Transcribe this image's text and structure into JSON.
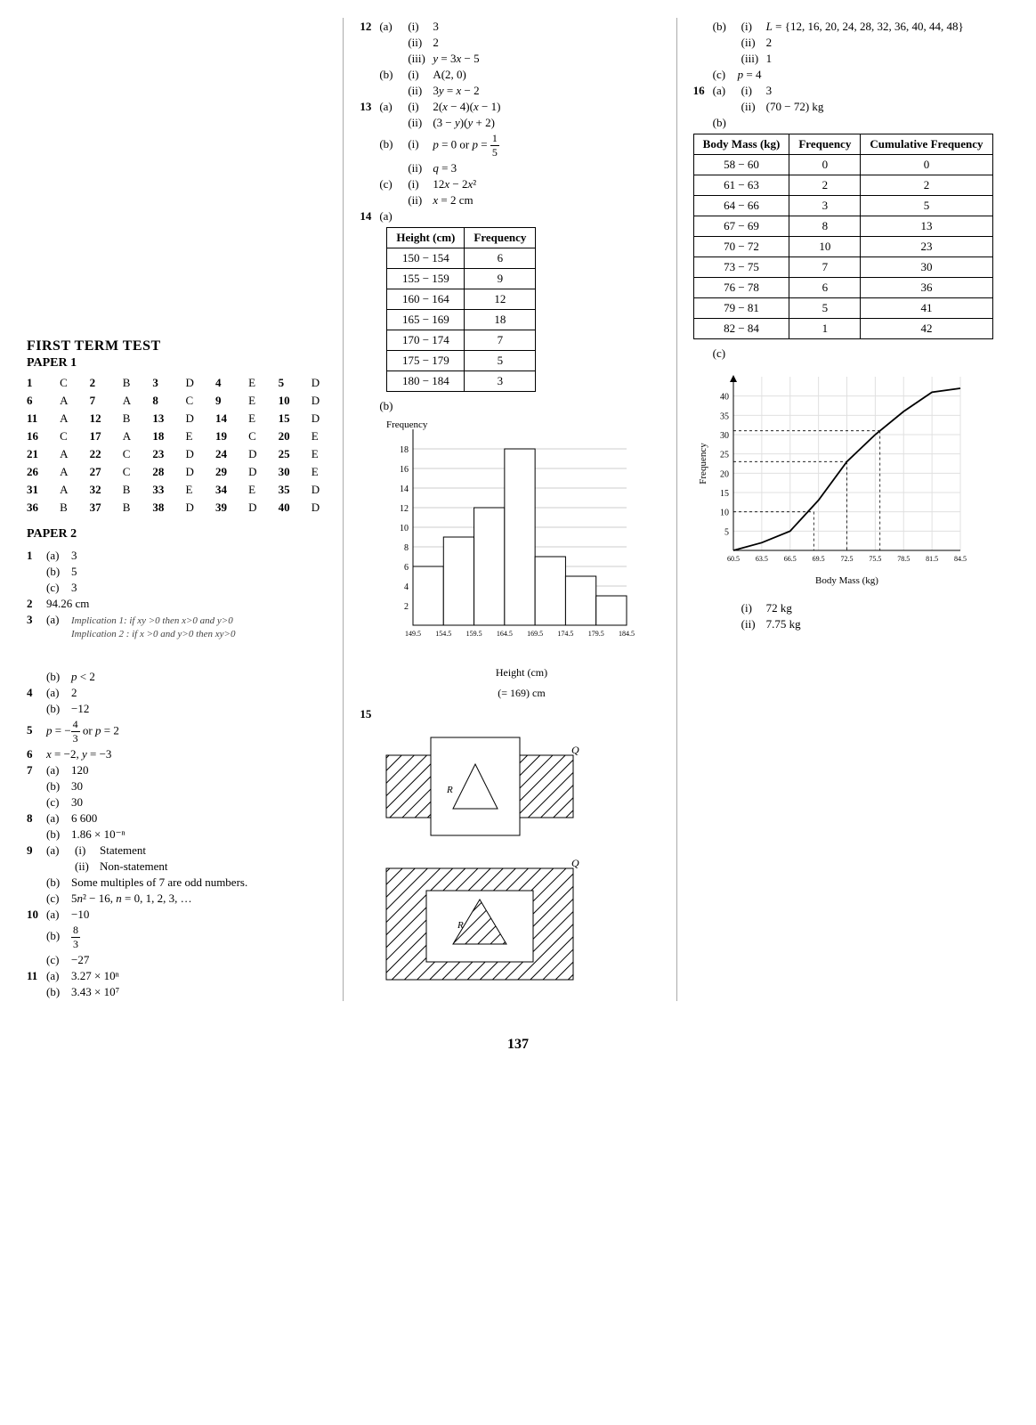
{
  "page_number": "137",
  "col1": {
    "heading": "FIRST TERM TEST",
    "paper1_label": "PAPER 1",
    "paper1_answers": [
      [
        "1",
        "C",
        "2",
        "B",
        "3",
        "D",
        "4",
        "E",
        "5",
        "D"
      ],
      [
        "6",
        "A",
        "7",
        "A",
        "8",
        "C",
        "9",
        "E",
        "10",
        "D"
      ],
      [
        "11",
        "A",
        "12",
        "B",
        "13",
        "D",
        "14",
        "E",
        "15",
        "D"
      ],
      [
        "16",
        "C",
        "17",
        "A",
        "18",
        "E",
        "19",
        "C",
        "20",
        "E"
      ],
      [
        "21",
        "A",
        "22",
        "C",
        "23",
        "D",
        "24",
        "D",
        "25",
        "E"
      ],
      [
        "26",
        "A",
        "27",
        "C",
        "28",
        "D",
        "29",
        "D",
        "30",
        "E"
      ],
      [
        "31",
        "A",
        "32",
        "B",
        "33",
        "E",
        "34",
        "E",
        "35",
        "D"
      ],
      [
        "36",
        "B",
        "37",
        "B",
        "38",
        "D",
        "39",
        "D",
        "40",
        "D"
      ]
    ],
    "paper2_label": "PAPER 2",
    "q1a": "3",
    "q1b": "5",
    "q1c": "3",
    "q2": "94.26 cm",
    "q3a_imp1": "Implication 1: if xy >0 then x>0 and y>0",
    "q3a_imp2": "Implication 2 : if x >0 and y>0 then xy>0",
    "q3b": "p < 2",
    "q4a": "2",
    "q4b": "−12",
    "q5": "p = −4/3 or p = 2",
    "q6": "x = −2, y = −3",
    "q7a": "120",
    "q7b": "30",
    "q7c": "30",
    "q8a": "6 600",
    "q8b": "1.86 × 10⁻ⁿ",
    "q9ai": "Statement",
    "q9aii": "Non-statement",
    "q9b": "Some multiples of 7 are odd numbers.",
    "q9c": "5n² − 16, n = 0, 1, 2, 3, …",
    "q10a": "−10",
    "q10b": "8/3",
    "q10c": "−27",
    "q11a": "3.27 × 10ⁿ",
    "q11b": "3.43 × 10⁷"
  },
  "col2": {
    "q12ai": "3",
    "q12aii": "2",
    "q12aiii": "y = 3x − 5",
    "q12bi": "A(2, 0)",
    "q12bii": "3y = x − 2",
    "q13ai": "2(x − 4)(x − 1)",
    "q13aii": "(3 − y)(y + 2)",
    "q13bi": "p = 0 or p = 1/5",
    "q13bii": "q = 3",
    "q13ci": "12x − 2x²",
    "q13cii": "x = 2 cm",
    "q14a_table": {
      "headers": [
        "Height (cm)",
        "Frequency"
      ],
      "rows": [
        [
          "150 − 154",
          "6"
        ],
        [
          "155 − 159",
          "9"
        ],
        [
          "160 − 164",
          "12"
        ],
        [
          "165 − 169",
          "18"
        ],
        [
          "170 − 174",
          "7"
        ],
        [
          "175 − 179",
          "5"
        ],
        [
          "180 − 184",
          "3"
        ]
      ]
    },
    "q14b_label": "(b)",
    "histogram": {
      "ylabel": "Frequency",
      "xlabel": "Height (cm)",
      "yticks": [
        18,
        16,
        14,
        12,
        10,
        8,
        6,
        4,
        2
      ],
      "xticks": [
        "149.5",
        "154.5",
        "159.5",
        "164.5",
        "169.5",
        "174.5",
        "179.5",
        "184.5"
      ],
      "bars": [
        6,
        9,
        12,
        18,
        7,
        5,
        3
      ],
      "bar_color": "#ffffff",
      "bar_border": "#000000",
      "grid_color": "#cccccc"
    },
    "q14b_mode": "(= 169) cm",
    "q15": "15"
  },
  "col3": {
    "q15bi_label": "(b)  (i)",
    "q15bi": "L = {12, 16, 20, 24, 28, 32, 36, 40, 44, 48}",
    "q15bii": "2",
    "q15biii": "1",
    "q15c": "p = 4",
    "q16ai": "3",
    "q16aii": "(70 − 72) kg",
    "q16b_label": "(b)",
    "q16b_table": {
      "headers": [
        "Body Mass (kg)",
        "Frequency",
        "Cumulative Frequency"
      ],
      "rows": [
        [
          "58 − 60",
          "0",
          "0"
        ],
        [
          "61 − 63",
          "2",
          "2"
        ],
        [
          "64 − 66",
          "3",
          "5"
        ],
        [
          "67 − 69",
          "8",
          "13"
        ],
        [
          "70 − 72",
          "10",
          "23"
        ],
        [
          "73 − 75",
          "7",
          "30"
        ],
        [
          "76 − 78",
          "6",
          "36"
        ],
        [
          "79 − 81",
          "5",
          "41"
        ],
        [
          "82 − 84",
          "1",
          "42"
        ]
      ]
    },
    "q16c_label": "(c)",
    "ogive": {
      "ylabel": "Frequency",
      "xlabel": "Body Mass (kg)",
      "yticks": [
        40,
        35,
        30,
        25,
        20,
        15,
        10,
        5
      ],
      "xticks": [
        "60.5",
        "63.5",
        "66.5",
        "69.5",
        "72.5",
        "75.5",
        "78.5",
        "81.5",
        "84.5"
      ],
      "points": [
        [
          60.5,
          0
        ],
        [
          63.5,
          2
        ],
        [
          66.5,
          5
        ],
        [
          69.5,
          13
        ],
        [
          72.5,
          23
        ],
        [
          75.5,
          30
        ],
        [
          78.5,
          36
        ],
        [
          81.5,
          41
        ],
        [
          84.5,
          42
        ]
      ],
      "line_color": "#000000",
      "grid_color": "#e0e0e0"
    },
    "q16ci": "72 kg",
    "q16cii": "7.75 kg"
  }
}
